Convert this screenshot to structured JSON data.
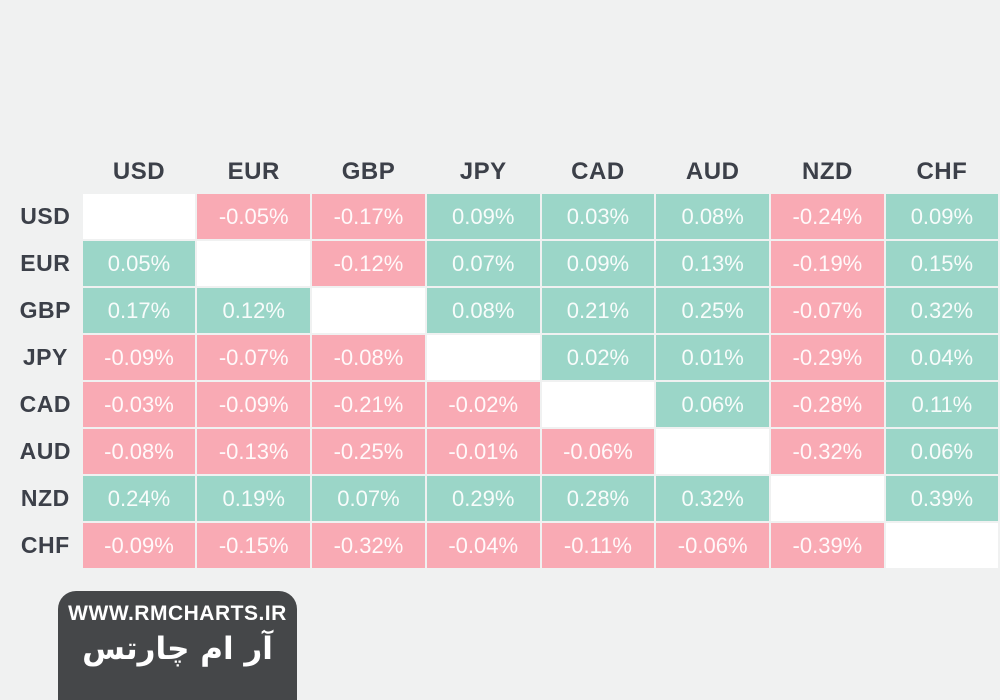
{
  "page": {
    "background": "#f0f1f1"
  },
  "colors": {
    "positive_cell": "#9bd6c8",
    "negative_cell": "#f9aab4",
    "diagonal_cell": "#ffffff",
    "header_text": "#3c4049",
    "cell_text": "rgba(255,255,255,0.93)",
    "watermark_bg": "#454749",
    "watermark_text": "#ffffff"
  },
  "chart_data": {
    "type": "heatmap",
    "rows": [
      "USD",
      "EUR",
      "GBP",
      "JPY",
      "CAD",
      "AUD",
      "NZD",
      "CHF"
    ],
    "columns": [
      "USD",
      "EUR",
      "GBP",
      "JPY",
      "CAD",
      "AUD",
      "NZD",
      "CHF"
    ],
    "values": [
      [
        null,
        -0.05,
        -0.17,
        0.09,
        0.03,
        0.08,
        -0.24,
        0.09
      ],
      [
        0.05,
        null,
        -0.12,
        0.07,
        0.09,
        0.13,
        -0.19,
        0.15
      ],
      [
        0.17,
        0.12,
        null,
        0.08,
        0.21,
        0.25,
        -0.07,
        0.32
      ],
      [
        -0.09,
        -0.07,
        -0.08,
        null,
        0.02,
        0.01,
        -0.29,
        0.04
      ],
      [
        -0.03,
        -0.09,
        -0.21,
        -0.02,
        null,
        0.06,
        -0.28,
        0.11
      ],
      [
        -0.08,
        -0.13,
        -0.25,
        -0.01,
        -0.06,
        null,
        -0.32,
        0.06
      ],
      [
        0.24,
        0.19,
        0.07,
        0.29,
        0.28,
        0.32,
        null,
        0.39
      ],
      [
        -0.09,
        -0.15,
        -0.32,
        -0.04,
        -0.11,
        -0.06,
        -0.39,
        null
      ]
    ],
    "value_suffix": "%",
    "value_decimals": 2,
    "legend": "none",
    "color_rule": {
      "positive": "mint-green cell",
      "negative": "pink cell",
      "diagonal": "white empty cell"
    }
  },
  "watermark": {
    "url": "WWW.RMCHARTS.IR",
    "brand": "آر ام چارتس"
  }
}
